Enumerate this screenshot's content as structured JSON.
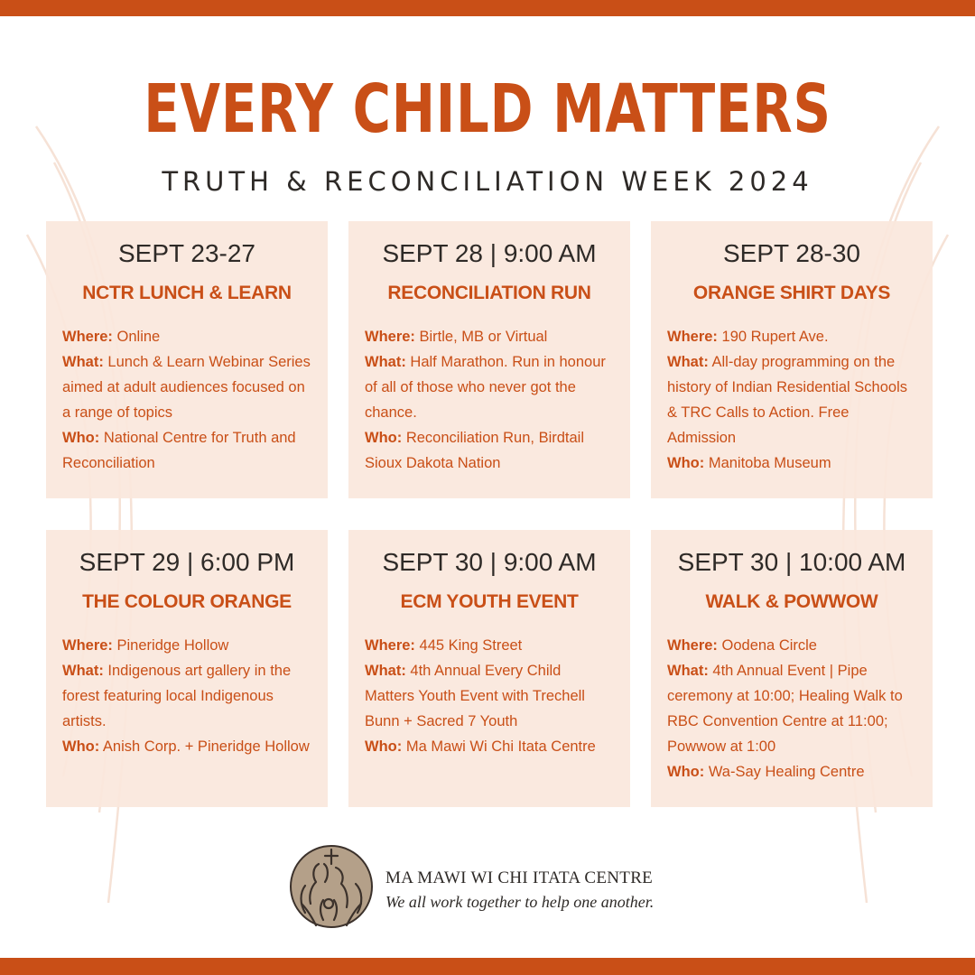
{
  "header": {
    "title": "EVERY CHILD MATTERS",
    "subtitle": "TRUTH & RECONCILIATION WEEK 2024"
  },
  "labels": {
    "where": "Where:",
    "what": "What:",
    "who": "Who:"
  },
  "events": [
    {
      "date": "SEPT 23-27",
      "title": "NCTR LUNCH & LEARN",
      "where": "Online",
      "what": "Lunch & Learn Webinar Series aimed at adult audiences focused on a range of topics",
      "who": "National Centre for Truth and Reconciliation"
    },
    {
      "date": "SEPT 28 | 9:00 AM",
      "title": "RECONCILIATION RUN",
      "where": "Birtle, MB or Virtual",
      "what": "Half Marathon. Run in honour of all of those who never got the chance.",
      "who": "Reconciliation Run, Birdtail Sioux Dakota Nation"
    },
    {
      "date": "SEPT 28-30",
      "title": "ORANGE SHIRT DAYS",
      "where": "190 Rupert Ave.",
      "what": "All-day programming on the history of Indian Residential Schools & TRC Calls to Action. Free Admission",
      "who": "Manitoba Museum"
    },
    {
      "date": "SEPT 29 |  6:00 PM",
      "title": "THE COLOUR ORANGE",
      "where": "Pineridge Hollow",
      "what": "Indigenous art gallery in the forest featuring local Indigenous artists.",
      "who": "Anish Corp. + Pineridge Hollow"
    },
    {
      "date": "SEPT 30 | 9:00 AM",
      "title": "ECM YOUTH EVENT",
      "where": "445 King Street",
      "what": "4th Annual Every Child Matters Youth Event with Trechell Bunn + Sacred 7 Youth",
      "who": "Ma Mawi Wi Chi Itata Centre"
    },
    {
      "date": "SEPT 30 | 10:00 AM",
      "title": "WALK & POWWOW",
      "where": "Oodena Circle",
      "what": "4th Annual Event | Pipe ceremony at 10:00; Healing Walk to RBC Convention Centre at 11:00; Powwow at 1:00",
      "who": "Wa-Say Healing Centre"
    }
  ],
  "footer": {
    "org_name": "MA MAWI WI CHI ITATA CENTRE",
    "tagline": "We all work together to help one another.",
    "logo_icon": "family-circle-logo"
  },
  "colors": {
    "accent": "#c94f17",
    "card_bg": "#fae7dd",
    "text_dark": "#2e2a27",
    "background": "#ffffff"
  }
}
